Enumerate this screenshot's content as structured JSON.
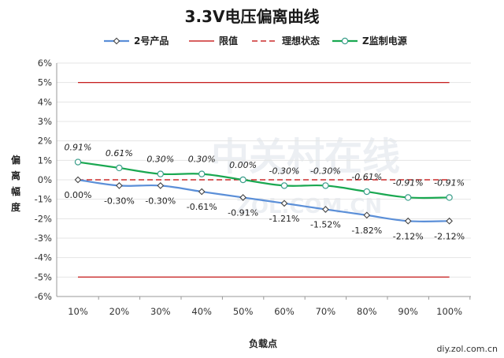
{
  "chart_data": {
    "type": "line",
    "title": "3.3V电压偏离曲线",
    "xlabel": "负载点",
    "ylabel": "偏离幅度",
    "categories": [
      "10%",
      "20%",
      "30%",
      "40%",
      "50%",
      "60%",
      "70%",
      "80%",
      "90%",
      "100%"
    ],
    "ylim": [
      -6,
      6
    ],
    "yticks": [
      "-6%",
      "-5%",
      "-4%",
      "-3%",
      "-2%",
      "-1%",
      "0%",
      "1%",
      "2%",
      "3%",
      "4%",
      "5%",
      "6%"
    ],
    "grid": true,
    "legend_position": "top",
    "series": [
      {
        "name": "2号产品",
        "color": "#5b8fd8",
        "values": [
          0.0,
          -0.3,
          -0.3,
          -0.61,
          -0.91,
          -1.21,
          -1.52,
          -1.82,
          -2.12,
          -2.12
        ],
        "labels": [
          "0.00%",
          "-0.30%",
          "-0.30%",
          "-0.61%",
          "-0.91%",
          "-1.21%",
          "-1.52%",
          "-1.82%",
          "-2.12%",
          "-2.12%"
        ]
      },
      {
        "name": "限值",
        "color": "#c00000",
        "values": [
          5,
          5,
          5,
          5,
          5,
          5,
          5,
          5,
          5,
          5
        ],
        "values_lower": [
          -5,
          -5,
          -5,
          -5,
          -5,
          -5,
          -5,
          -5,
          -5,
          -5
        ]
      },
      {
        "name": "理想状态",
        "color": "#c00000",
        "values": [
          0,
          0,
          0,
          0,
          0,
          0,
          0,
          0,
          0,
          0
        ]
      },
      {
        "name": "Z监制电源",
        "color": "#1aa851",
        "values": [
          0.91,
          0.61,
          0.3,
          0.3,
          0.0,
          -0.3,
          -0.3,
          -0.61,
          -0.91,
          -0.91
        ],
        "labels": [
          "0.91%",
          "0.61%",
          "0.30%",
          "0.30%",
          "0.00%",
          "-0.30%",
          "-0.30%",
          "-0.61%",
          "-0.91%",
          "-0.91%"
        ]
      }
    ]
  },
  "watermark": {
    "main": "中关村在线",
    "sub": "ZOL.COM.CN"
  },
  "footer": "diy.zol.com.cn"
}
